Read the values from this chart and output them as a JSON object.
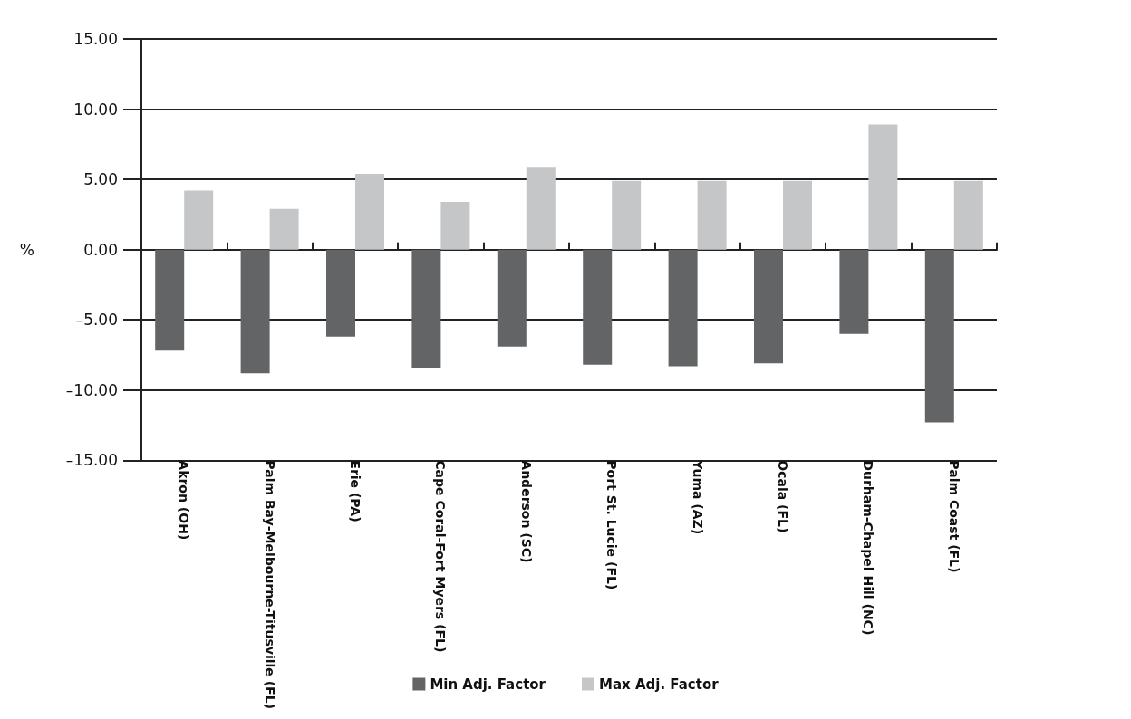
{
  "chart_data": {
    "type": "bar",
    "categories": [
      "Akron (OH)",
      "Palm Bay-Melbourne-Titusville (FL)",
      "Erie (PA)",
      "Cape Coral-Fort Myers (FL)",
      "Anderson (SC)",
      "Port St. Lucie (FL)",
      "Yuma (AZ)",
      "Ocala (FL)",
      "Durham-Chapel Hill (NC)",
      "Palm Coast (FL)"
    ],
    "series": [
      {
        "name": "Min Adj. Factor",
        "color": "#636466",
        "values": [
          -7.2,
          -8.8,
          -6.2,
          -8.4,
          -6.9,
          -8.2,
          -8.3,
          -8.1,
          -6.0,
          -12.3
        ]
      },
      {
        "name": "Max Adj. Factor",
        "color": "#c5c6c8",
        "values": [
          4.2,
          2.9,
          5.4,
          3.4,
          5.9,
          4.9,
          4.9,
          4.9,
          8.9,
          4.9
        ]
      }
    ],
    "ylabel": "%",
    "ylim": [
      -15,
      15
    ],
    "yticks": [
      {
        "value": -15,
        "label": "–15.00"
      },
      {
        "value": -10,
        "label": "–10.00"
      },
      {
        "value": -5,
        "label": "–5.00"
      },
      {
        "value": 0,
        "label": "0.00"
      },
      {
        "value": 5,
        "label": "5.00"
      },
      {
        "value": 10,
        "label": "10.00"
      },
      {
        "value": 15,
        "label": "15.00"
      }
    ],
    "grid": "y",
    "legend": "bottom"
  }
}
